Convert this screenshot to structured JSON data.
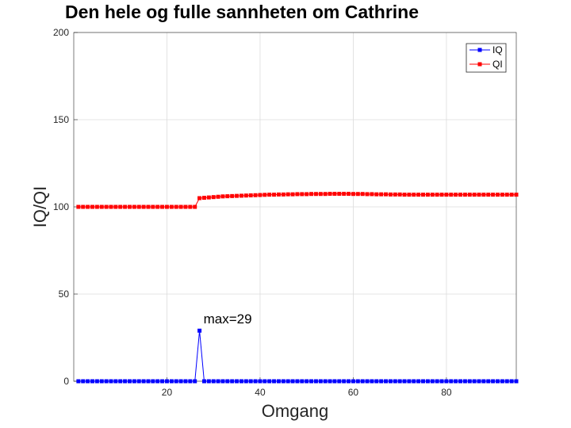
{
  "chart_data": {
    "type": "line",
    "title": "Den hele og fulle sannheten om Cathrine",
    "xlabel": "Omgang",
    "ylabel": "IQ/QI",
    "xlim": [
      0,
      95
    ],
    "ylim": [
      0,
      200
    ],
    "xticks": [
      20,
      40,
      60,
      80
    ],
    "yticks": [
      0,
      50,
      100,
      150,
      200
    ],
    "grid": true,
    "legend": "top-right",
    "annotation": {
      "text": "max=29",
      "x": 27,
      "y": 29
    },
    "series": [
      {
        "name": "IQ",
        "color": "#0000ff",
        "values": [
          0,
          0,
          0,
          0,
          0,
          0,
          0,
          0,
          0,
          0,
          0,
          0,
          0,
          0,
          0,
          0,
          0,
          0,
          0,
          0,
          0,
          0,
          0,
          0,
          0,
          0,
          29,
          0,
          0,
          0,
          0,
          0,
          0,
          0,
          0,
          0,
          0,
          0,
          0,
          0,
          0,
          0,
          0,
          0,
          0,
          0,
          0,
          0,
          0,
          0,
          0,
          0,
          0,
          0,
          0,
          0,
          0,
          0,
          0,
          0,
          0,
          0,
          0,
          0,
          0,
          0,
          0,
          0,
          0,
          0,
          0,
          0,
          0,
          0,
          0,
          0,
          0,
          0,
          0,
          0,
          0,
          0,
          0,
          0,
          0,
          0,
          0,
          0,
          0,
          0,
          0,
          0,
          0,
          0,
          0
        ]
      },
      {
        "name": "QI",
        "color": "#ff0000",
        "values": [
          100,
          100,
          100,
          100,
          100,
          100,
          100,
          100,
          100,
          100,
          100,
          100,
          100,
          100,
          100,
          100,
          100,
          100,
          100,
          100,
          100,
          100,
          100,
          100,
          100,
          100,
          105,
          105.2,
          105.4,
          105.6,
          105.8,
          106,
          106.1,
          106.2,
          106.3,
          106.4,
          106.5,
          106.6,
          106.7,
          106.8,
          106.9,
          107,
          107,
          107.1,
          107.1,
          107.2,
          107.2,
          107.3,
          107.3,
          107.3,
          107.4,
          107.4,
          107.4,
          107.4,
          107.5,
          107.5,
          107.5,
          107.5,
          107.5,
          107.4,
          107.4,
          107.4,
          107.3,
          107.3,
          107.2,
          107.2,
          107.2,
          107.1,
          107.1,
          107.1,
          107,
          107,
          107,
          107,
          107,
          107,
          107,
          107,
          107,
          107,
          107,
          107,
          107,
          107,
          107,
          107,
          107,
          107,
          107,
          107,
          107,
          107,
          107,
          107,
          107
        ]
      }
    ]
  }
}
